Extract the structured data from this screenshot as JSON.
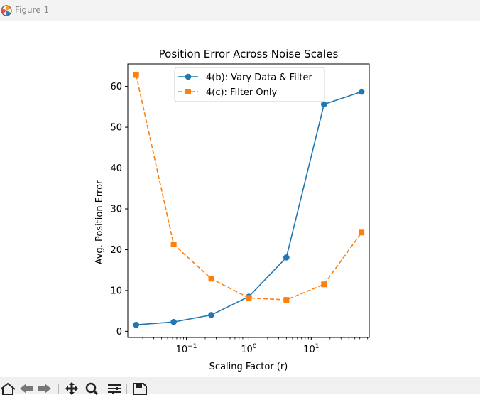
{
  "window": {
    "title": "Figure 1",
    "app_icon": "matplotlib-logo-icon"
  },
  "toolbar": {
    "buttons": [
      {
        "name": "home-icon"
      },
      {
        "name": "back-arrow-icon"
      },
      {
        "name": "forward-arrow-icon"
      },
      {
        "name": "pan-move-icon"
      },
      {
        "name": "zoom-magnifier-icon"
      },
      {
        "name": "configure-subplots-icon"
      },
      {
        "name": "save-floppy-icon"
      }
    ]
  },
  "chart_data": {
    "type": "line",
    "title": "Position Error Across Noise Scales",
    "xlabel": "Scaling Factor (r)",
    "ylabel": "Avg. Position Error",
    "xscale": "log",
    "xlim": [
      0.0115,
      85
    ],
    "ylim": [
      -1.5,
      65.5
    ],
    "x": [
      0.015625,
      0.0625,
      0.25,
      1,
      4,
      16,
      64
    ],
    "x_ticks": [
      {
        "value": 0.1,
        "base": "10",
        "exp": "−1"
      },
      {
        "value": 1,
        "base": "10",
        "exp": "0"
      },
      {
        "value": 10,
        "base": "10",
        "exp": "1"
      }
    ],
    "y_ticks": [
      0,
      10,
      20,
      30,
      40,
      50,
      60
    ],
    "grid": false,
    "legend_position": "upper center",
    "series": [
      {
        "name": "4(b): Vary Data & Filter",
        "values": [
          1.6,
          2.3,
          4.0,
          8.5,
          18.1,
          55.6,
          58.7
        ],
        "color": "#1f77b4",
        "linestyle": "solid",
        "marker": "circle"
      },
      {
        "name": "4(c): Filter Only",
        "values": [
          62.8,
          21.3,
          12.9,
          8.2,
          7.7,
          11.5,
          24.2
        ],
        "color": "#ff7f0e",
        "linestyle": "dashed",
        "marker": "square"
      }
    ]
  }
}
